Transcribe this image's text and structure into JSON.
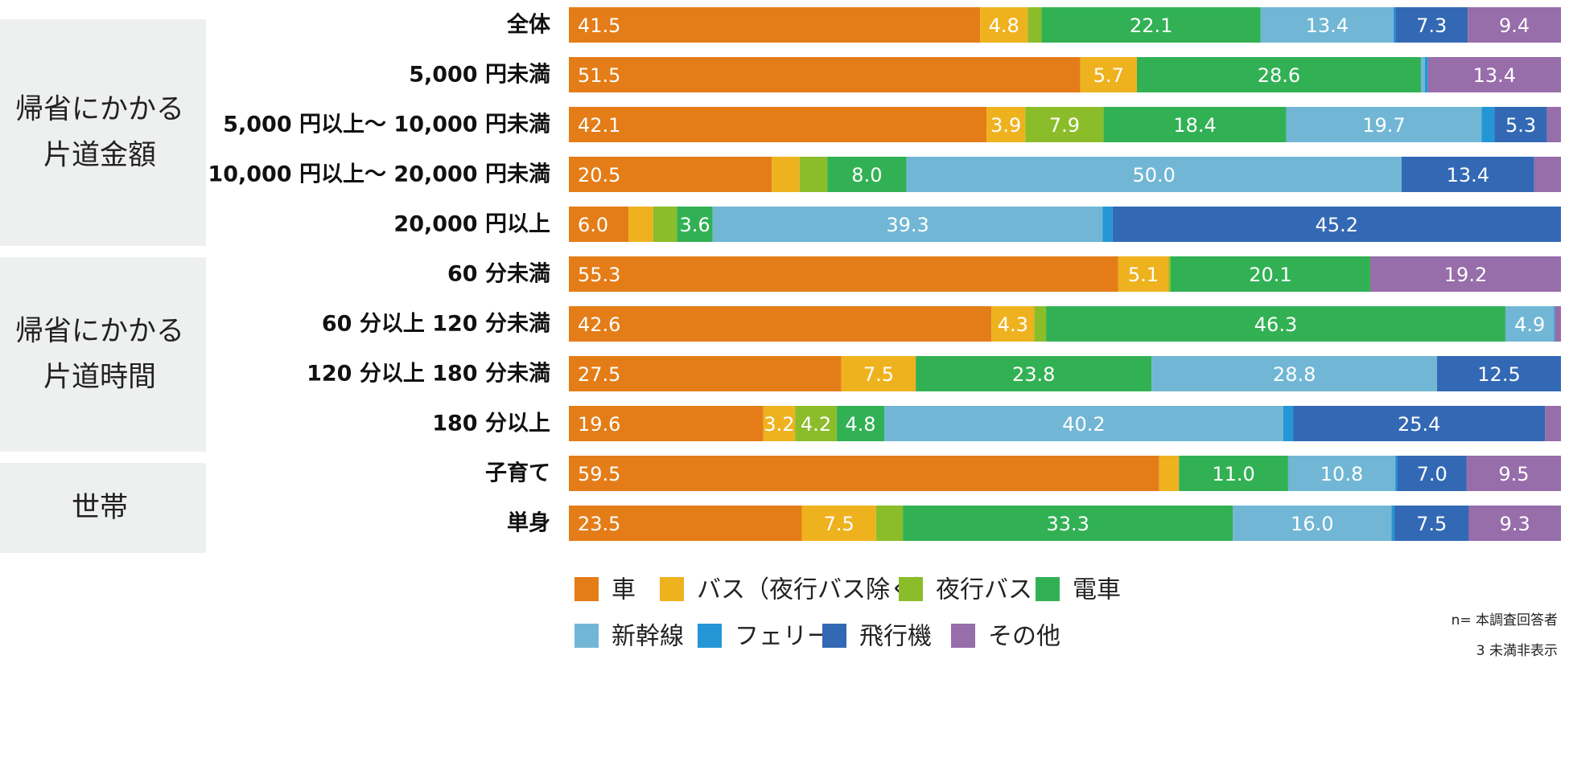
{
  "chart_data": {
    "type": "bar",
    "orientation": "horizontal",
    "stacked": true,
    "percent": true,
    "xlim": [
      0,
      100
    ],
    "grid": false,
    "legend_position": "bottom",
    "groups": [
      {
        "label_lines": [
          "帰省にかかる",
          "片道金額"
        ],
        "rows": [
          1,
          2,
          3,
          4
        ]
      },
      {
        "label_lines": [
          "帰省にかかる",
          "片道時間"
        ],
        "rows": [
          5,
          6,
          7,
          8
        ]
      },
      {
        "label_lines": [
          "世帯"
        ],
        "rows": [
          9,
          10
        ]
      }
    ],
    "categories": [
      "全体",
      "5,000 円未満",
      "5,000 円以上～ 10,000 円未満",
      "10,000 円以上～ 20,000 円未満",
      "20,000 円以上",
      "60 分未満",
      "60 分以上 120 分未満",
      "120 分以上 180 分未満",
      "180 分以上",
      "子育て",
      "単身"
    ],
    "series": [
      {
        "name": "車",
        "color": "#e47d18",
        "values": [
          41.5,
          51.5,
          42.1,
          20.5,
          6.0,
          55.3,
          42.6,
          27.5,
          19.6,
          59.5,
          23.5
        ]
      },
      {
        "name": "バス（夜行バス除く）",
        "color": "#efb21f",
        "values": [
          4.8,
          5.7,
          3.9,
          2.8,
          2.5,
          5.1,
          4.3,
          7.5,
          3.2,
          2.0,
          7.5
        ]
      },
      {
        "name": "夜行バス",
        "color": "#8bbd2a",
        "values": [
          1.4,
          0.0,
          7.9,
          2.8,
          2.4,
          0.2,
          1.2,
          0.0,
          4.2,
          0.0,
          2.7
        ]
      },
      {
        "name": "電車",
        "color": "#32b154",
        "values": [
          22.1,
          28.6,
          18.4,
          8.0,
          3.6,
          20.1,
          46.3,
          23.8,
          4.8,
          11.0,
          33.3
        ]
      },
      {
        "name": "新幹線",
        "color": "#71b7d5",
        "values": [
          13.4,
          0.4,
          19.7,
          50.0,
          39.3,
          0.0,
          4.9,
          28.8,
          40.2,
          10.8,
          16.0
        ]
      },
      {
        "name": "フェリー",
        "color": "#2496d6",
        "values": [
          0.2,
          0.3,
          1.3,
          0.0,
          1.0,
          0.0,
          0.1,
          0.0,
          1.0,
          0.2,
          0.3
        ]
      },
      {
        "name": "飛行機",
        "color": "#3369b4",
        "values": [
          7.3,
          0.0,
          5.3,
          13.4,
          45.2,
          0.0,
          0.0,
          12.5,
          25.4,
          7.0,
          7.5
        ]
      },
      {
        "name": "その他",
        "color": "#976daa",
        "values": [
          9.4,
          13.4,
          1.4,
          2.7,
          0.0,
          19.2,
          0.6,
          0.0,
          1.6,
          9.5,
          9.3
        ]
      }
    ],
    "data_labels": [
      [
        "41.5",
        "4.8",
        "",
        "22.1",
        "13.4",
        "",
        "7.3",
        "9.4"
      ],
      [
        "51.5",
        "5.7",
        "",
        "28.6",
        "",
        "",
        "",
        "13.4"
      ],
      [
        "42.1",
        "3.9",
        "7.9",
        "18.4",
        "19.7",
        "",
        "5.3",
        ""
      ],
      [
        "20.5",
        "",
        "",
        "8.0",
        "50.0",
        "",
        "13.4",
        ""
      ],
      [
        "6.0",
        "",
        "",
        "3.6",
        "39.3",
        "",
        "45.2",
        ""
      ],
      [
        "55.3",
        "5.1",
        "",
        "20.1",
        "",
        "",
        "",
        "19.2"
      ],
      [
        "42.6",
        "4.3",
        "",
        "46.3",
        "4.9",
        "",
        "",
        ""
      ],
      [
        "27.5",
        "7.5",
        "",
        "23.8",
        "28.8",
        "",
        "12.5",
        ""
      ],
      [
        "19.6",
        "3.2",
        "4.2",
        "4.8",
        "40.2",
        "",
        "25.4",
        ""
      ],
      [
        "59.5",
        "",
        "",
        "11.0",
        "10.8",
        "",
        "7.0",
        "9.5"
      ],
      [
        "23.5",
        "7.5",
        "",
        "33.3",
        "16.0",
        "",
        "7.5",
        "9.3"
      ]
    ],
    "notes": [
      "n= 本調査回答者",
      "3 未満非表示"
    ]
  }
}
